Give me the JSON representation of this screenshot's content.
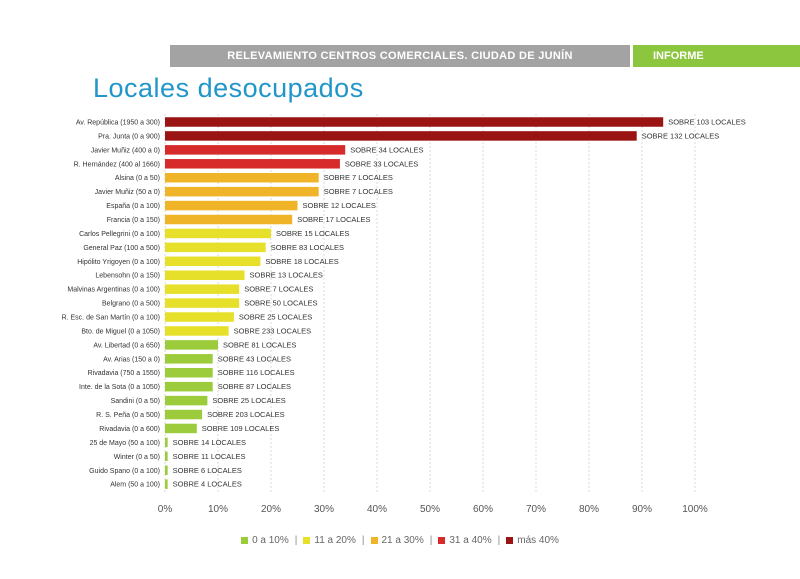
{
  "header": {
    "title": "RELEVAMIENTO CENTROS COMERCIALES.  CIUDAD DE JUNÍN",
    "tag": "INFORME"
  },
  "page_title": "Locales desocupados",
  "colors": {
    "header_gray": "#a3a3a3",
    "header_green": "#8cc63f",
    "title_blue": "#2196c9",
    "0-10": "#9ccc3c",
    "11-20": "#e6e02a",
    "21-30": "#f0b428",
    "31-40": "#d72a2a",
    "40+": "#9b1414"
  },
  "chart_data": {
    "type": "bar",
    "orientation": "horizontal",
    "categories": [
      "Av. República (1950 a 300)",
      "Pra. Junta (0 a 900)",
      "Javier Muñiz (400 a 0)",
      "R. Hernández (400 al 1660)",
      "Alsina (0 a 50)",
      "Javier Muñiz (50 a 0)",
      "España (0 a 100)",
      "Francia (0 a 150)",
      "Carlos Pellegrini (0 a 100)",
      "General Paz (100 a 500)",
      "Hipólito Yrigoyen (0 a 100)",
      "Lebensohn (0 a 150)",
      "Malvinas Argentinas (0 a 100)",
      "Belgrano (0 a 500)",
      "R. Esc. de San Martín (0 a 100)",
      "Bto. de Miguel (0 a 1050)",
      "Av. Libertad (0 a 650)",
      "Av. Arias (150 a 0)",
      "Rivadavia (750 a 1550)",
      "Inte. de la Sota (0 a 1050)",
      "Sandini (0 a 50)",
      "R. S. Peña (0 a 500)",
      "Rivadavia (0 a 600)",
      "25 de Mayo (50 a 100)",
      "Winter (0 a 50)",
      "Guido Spano (0 a 100)",
      "Alem (50 a 100)"
    ],
    "values": [
      94,
      89,
      34,
      33,
      29,
      29,
      25,
      24,
      20,
      19,
      18,
      15,
      14,
      14,
      13,
      12,
      10,
      9,
      9,
      9,
      8,
      7,
      6,
      0.5,
      0.5,
      0.5,
      0.5
    ],
    "value_labels": [
      "SOBRE 103 LOCALES",
      "SOBRE 132 LOCALES",
      "SOBRE 34 LOCALES",
      "SOBRE 33 LOCALES",
      "SOBRE 7 LOCALES",
      "SOBRE 7 LOCALES",
      "SOBRE 12 LOCALES",
      "SOBRE 17 LOCALES",
      "SOBRE 15 LOCALES",
      "SOBRE 83 LOCALES",
      "SOBRE 18 LOCALES",
      "SOBRE 13 LOCALES",
      "SOBRE 7 LOCALES",
      "SOBRE 50 LOCALES",
      "SOBRE 25 LOCALES",
      "SOBRE 233 LOCALES",
      "SOBRE 81 LOCALES",
      "SOBRE 43 LOCALES",
      "SOBRE 116 LOCALES",
      "SOBRE 87 LOCALES",
      "SOBRE 25 LOCALES",
      "SOBRE 203 LOCALES",
      "SOBRE 109 LOCALES",
      "SOBRE 14 LOCALES",
      "SOBRE 11 LOCALES",
      "SOBRE 6 LOCALES",
      "SOBRE 4 LOCALES"
    ],
    "x_ticks": [
      "0%",
      "10%",
      "20%",
      "30%",
      "40%",
      "50%",
      "60%",
      "70%",
      "80%",
      "90%",
      "100%"
    ],
    "xlim": [
      0,
      100
    ],
    "grid": true,
    "legend_position": "bottom",
    "legend": [
      {
        "label": "0 a 10%",
        "color": "#9ccc3c"
      },
      {
        "label": "11 a 20%",
        "color": "#e6e02a"
      },
      {
        "label": "21 a 30%",
        "color": "#f0b428"
      },
      {
        "label": "31 a 40%",
        "color": "#d72a2a"
      },
      {
        "label": "más 40%",
        "color": "#9b1414"
      }
    ]
  }
}
